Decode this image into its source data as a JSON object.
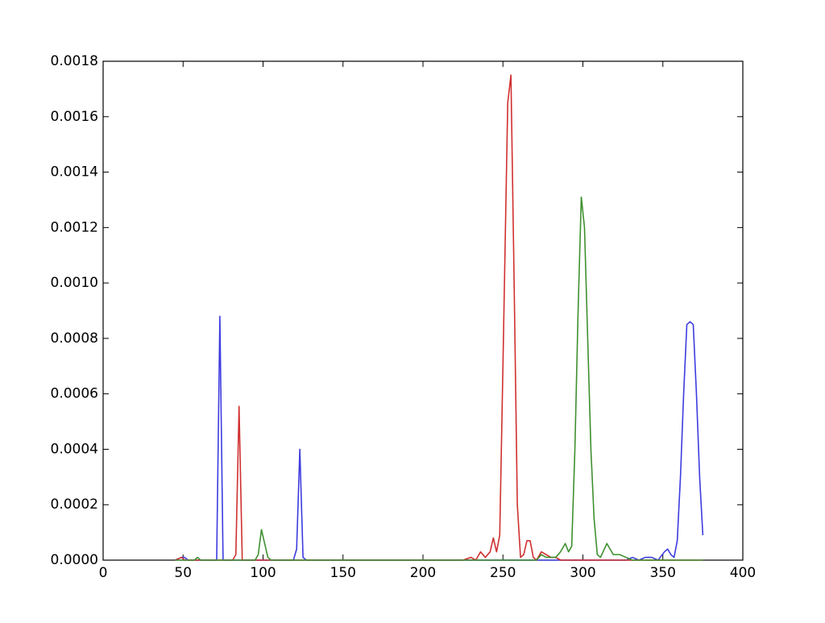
{
  "chart_data": {
    "type": "line",
    "x": [
      45,
      49,
      51,
      53,
      55,
      57,
      59,
      61,
      69,
      71,
      73,
      75,
      77,
      81,
      83,
      85,
      87,
      89,
      95,
      97,
      99,
      101,
      103,
      105,
      117,
      119,
      121,
      123,
      125,
      127,
      200,
      210,
      215,
      220,
      225,
      230,
      233,
      236,
      239,
      242,
      244,
      246,
      248,
      250,
      253,
      255,
      257,
      259,
      261,
      263,
      265,
      267,
      269,
      271,
      274,
      277,
      280,
      283,
      286,
      289,
      291,
      293,
      295,
      297,
      299,
      301,
      303,
      305,
      307,
      309,
      311,
      315,
      319,
      323,
      327,
      331,
      335,
      339,
      343,
      347,
      351,
      353,
      355,
      357,
      359,
      361,
      363,
      365,
      367,
      369,
      371,
      373,
      375
    ],
    "series": [
      {
        "color": "#3c3ce0",
        "values": [
          0,
          1e-05,
          1e-05,
          0,
          0,
          0,
          0,
          0,
          0,
          0,
          0.00088,
          0,
          0,
          0,
          0,
          0,
          0,
          0,
          0,
          0,
          0,
          0,
          0,
          0,
          0,
          0,
          4e-05,
          0.0004,
          1e-05,
          0,
          0,
          0,
          0,
          0,
          0,
          0,
          0,
          0,
          0,
          0,
          0,
          0,
          0,
          0,
          0,
          0,
          0,
          0,
          0,
          0,
          0,
          0,
          0,
          0,
          0,
          0,
          0,
          0,
          0,
          0,
          0,
          0,
          0,
          0,
          0,
          0,
          0,
          0,
          0,
          0,
          0,
          0,
          0,
          0,
          0,
          1e-05,
          0,
          1e-05,
          1e-05,
          0,
          3e-05,
          4e-05,
          2e-05,
          1e-05,
          7e-05,
          0.0003,
          0.0006,
          0.00085,
          0.00086,
          0.00085,
          0.0006,
          0.0003,
          9e-05
        ]
      },
      {
        "color": "#d03030",
        "values": [
          0,
          1e-05,
          0,
          0,
          0,
          0,
          0,
          0,
          0,
          0,
          0,
          0,
          0,
          0,
          2e-05,
          0.000555,
          0,
          0,
          0,
          0,
          0,
          0,
          0,
          0,
          0,
          0,
          0,
          0,
          0,
          0,
          0,
          0,
          0,
          0,
          0,
          1e-05,
          0,
          3e-05,
          1e-05,
          3e-05,
          8e-05,
          3e-05,
          9e-05,
          0.0007,
          0.00165,
          0.00175,
          0.001,
          0.0002,
          1e-05,
          2e-05,
          7e-05,
          7e-05,
          1e-05,
          0,
          3e-05,
          2e-05,
          1e-05,
          1e-05,
          0,
          0,
          0,
          0,
          0,
          0,
          0,
          0,
          0,
          0,
          0,
          0,
          0,
          0,
          0,
          0,
          0,
          0,
          0,
          0,
          0,
          0,
          0,
          0,
          0,
          0,
          0,
          0,
          0,
          0,
          0,
          0,
          0,
          0,
          0
        ]
      },
      {
        "color": "#3f9030",
        "values": [
          0,
          0,
          0,
          0,
          0,
          0,
          1e-05,
          0,
          0,
          0,
          0,
          0,
          0,
          0,
          0,
          0,
          0,
          0,
          0,
          2e-05,
          0.00011,
          6e-05,
          1e-05,
          0,
          0,
          0,
          0,
          0,
          0,
          0,
          0,
          0,
          0,
          0,
          0,
          0,
          0,
          0,
          0,
          0,
          0,
          0,
          0,
          0,
          0,
          0,
          0,
          0,
          0,
          0,
          0,
          0,
          0,
          0,
          2e-05,
          1e-05,
          1e-05,
          1e-05,
          3e-05,
          6e-05,
          3e-05,
          5e-05,
          0.0004,
          0.0009,
          0.00131,
          0.0012,
          0.0008,
          0.0004,
          0.00015,
          2e-05,
          1e-05,
          6e-05,
          2e-05,
          2e-05,
          1e-05,
          0,
          0,
          0,
          0,
          0,
          0,
          0,
          0,
          0,
          0,
          0,
          0,
          0,
          0,
          0,
          0,
          0,
          0
        ]
      }
    ],
    "xlim": [
      0,
      400
    ],
    "xticks": [
      0,
      50,
      100,
      150,
      200,
      250,
      300,
      350,
      400
    ],
    "ylim": [
      0,
      0.0018
    ],
    "yticks": [
      {
        "value": 0,
        "label": "0.0000"
      },
      {
        "value": 0.0002,
        "label": "0.0002"
      },
      {
        "value": 0.0004,
        "label": "0.0004"
      },
      {
        "value": 0.0006,
        "label": "0.0006"
      },
      {
        "value": 0.0008,
        "label": "0.0008"
      },
      {
        "value": 0.001,
        "label": "0.0010"
      },
      {
        "value": 0.0012,
        "label": "0.0012"
      },
      {
        "value": 0.0014,
        "label": "0.0014"
      },
      {
        "value": 0.0016,
        "label": "0.0016"
      },
      {
        "value": 0.0018,
        "label": "0.0018"
      }
    ],
    "grid": false
  }
}
